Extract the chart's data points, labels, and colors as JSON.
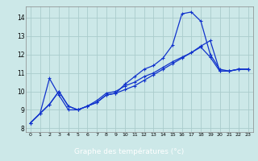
{
  "xlabel": "Graphe des températures (°c)",
  "bg_color": "#cce8e8",
  "grid_color": "#aacccc",
  "line_color": "#1133cc",
  "xlabel_bg": "#2255bb",
  "xlim": [
    -0.5,
    23.5
  ],
  "ylim": [
    7.8,
    14.6
  ],
  "yticks": [
    8,
    9,
    10,
    11,
    12,
    13,
    14
  ],
  "xticks": [
    0,
    1,
    2,
    3,
    4,
    5,
    6,
    7,
    8,
    9,
    10,
    11,
    12,
    13,
    14,
    15,
    16,
    17,
    18,
    19,
    20,
    21,
    22,
    23
  ],
  "curve1_x": [
    0,
    1,
    2,
    3,
    4,
    5,
    6,
    7,
    8,
    9,
    10,
    11,
    12,
    13,
    14,
    15,
    16,
    17,
    18,
    19,
    20,
    21,
    22,
    23
  ],
  "curve1_y": [
    8.3,
    8.8,
    9.3,
    10.0,
    9.2,
    9.0,
    9.2,
    9.4,
    9.8,
    9.9,
    10.4,
    10.8,
    11.2,
    11.4,
    11.8,
    12.5,
    14.2,
    14.3,
    13.8,
    12.0,
    11.2,
    11.1,
    11.2,
    11.2
  ],
  "curve2_x": [
    0,
    1,
    2,
    3,
    4,
    5,
    6,
    7,
    8,
    9,
    10,
    11,
    12,
    13,
    14,
    15,
    16,
    17,
    18,
    19,
    20,
    21,
    22,
    23
  ],
  "curve2_y": [
    8.3,
    8.8,
    10.7,
    9.8,
    9.0,
    9.0,
    9.2,
    9.5,
    9.9,
    10.0,
    10.3,
    10.5,
    10.8,
    11.0,
    11.3,
    11.6,
    11.85,
    12.1,
    12.4,
    11.85,
    11.1,
    11.1,
    11.2,
    11.2
  ],
  "curve3_x": [
    0,
    2,
    3,
    4,
    5,
    6,
    7,
    8,
    9,
    10,
    11,
    12,
    13,
    14,
    15,
    16,
    17,
    18,
    19,
    20,
    21,
    22,
    23
  ],
  "curve3_y": [
    8.3,
    9.3,
    10.0,
    9.2,
    9.0,
    9.2,
    9.4,
    9.8,
    9.9,
    10.1,
    10.3,
    10.6,
    10.9,
    11.2,
    11.5,
    11.8,
    12.1,
    12.45,
    12.75,
    11.1,
    11.1,
    11.2,
    11.2
  ]
}
